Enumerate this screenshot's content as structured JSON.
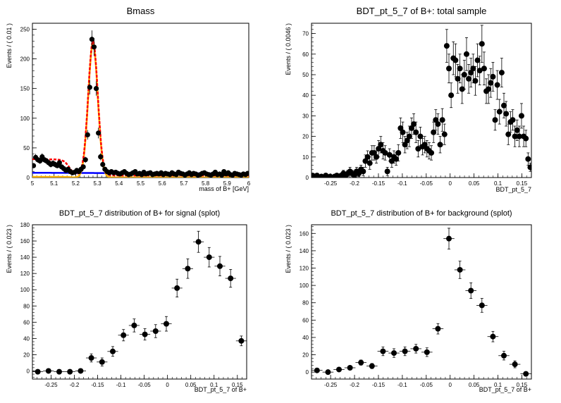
{
  "chart_data": [
    {
      "type": "scatter",
      "title": "Bmass",
      "xlabel": "mass of B+ [GeV]",
      "ylabel": "Events / ( 0.01 )",
      "xlim": [
        5.0,
        6.0
      ],
      "ylim": [
        0,
        260
      ],
      "xticks": [
        5,
        5.1,
        5.2,
        5.3,
        5.4,
        5.5,
        5.6,
        5.7,
        5.8,
        5.9,
        6
      ],
      "xtick_labels": [
        "5",
        "5.1",
        "5.2",
        "5.3",
        "5.4",
        "5.5",
        "5.6",
        "5.7",
        "5.8",
        "5.9",
        "6"
      ],
      "yticks": [
        0,
        50,
        100,
        150,
        200,
        250
      ],
      "ytick_labels": [
        "0",
        "50",
        "100",
        "150",
        "200",
        "250"
      ],
      "grid": false,
      "points": {
        "x": [
          5.005,
          5.015,
          5.025,
          5.035,
          5.045,
          5.055,
          5.065,
          5.075,
          5.085,
          5.095,
          5.105,
          5.115,
          5.125,
          5.135,
          5.145,
          5.155,
          5.165,
          5.175,
          5.185,
          5.195,
          5.205,
          5.215,
          5.225,
          5.235,
          5.245,
          5.255,
          5.265,
          5.275,
          5.285,
          5.295,
          5.305,
          5.315,
          5.325,
          5.335,
          5.345,
          5.355,
          5.365,
          5.375,
          5.385,
          5.395,
          5.405,
          5.415,
          5.425,
          5.435,
          5.445,
          5.455,
          5.465,
          5.475,
          5.485,
          5.495,
          5.505,
          5.515,
          5.525,
          5.535,
          5.545,
          5.555,
          5.565,
          5.575,
          5.585,
          5.595,
          5.605,
          5.615,
          5.625,
          5.635,
          5.645,
          5.655,
          5.665,
          5.675,
          5.685,
          5.695,
          5.705,
          5.715,
          5.725,
          5.735,
          5.745,
          5.755,
          5.765,
          5.775,
          5.785,
          5.795,
          5.805,
          5.815,
          5.825,
          5.835,
          5.845,
          5.855,
          5.865,
          5.875,
          5.885,
          5.895,
          5.905,
          5.915,
          5.925,
          5.935,
          5.945,
          5.955,
          5.965,
          5.975,
          5.985,
          5.995
        ],
        "y": [
          20,
          34,
          30,
          28,
          35,
          30,
          28,
          25,
          22,
          24,
          22,
          20,
          25,
          18,
          15,
          12,
          14,
          10,
          8,
          9,
          12,
          10,
          14,
          18,
          30,
          72,
          152,
          233,
          220,
          150,
          75,
          35,
          22,
          14,
          10,
          8,
          10,
          8,
          9,
          7,
          6,
          8,
          10,
          7,
          5,
          6,
          8,
          10,
          6,
          7,
          5,
          9,
          6,
          7,
          8,
          5,
          6,
          7,
          6,
          8,
          5,
          7,
          6,
          5,
          8,
          6,
          5,
          9,
          7,
          6,
          4,
          6,
          8,
          5,
          7,
          6,
          4,
          5,
          7,
          8,
          6,
          5,
          4,
          6,
          9,
          5,
          6,
          4,
          10,
          6,
          8,
          5,
          4,
          7,
          6,
          5,
          4,
          6,
          5,
          7
        ],
        "yerr": [
          4,
          6,
          5,
          5,
          6,
          5,
          5,
          5,
          5,
          5,
          5,
          4,
          5,
          4,
          4,
          3,
          4,
          3,
          3,
          3,
          3,
          3,
          4,
          4,
          5,
          8,
          12,
          15,
          15,
          12,
          9,
          6,
          5,
          4,
          3,
          3,
          3,
          3,
          3,
          3,
          2,
          3,
          3,
          3,
          2,
          2,
          3,
          3,
          2,
          3,
          2,
          3,
          2,
          3,
          3,
          2,
          2,
          3,
          2,
          3,
          2,
          3,
          2,
          2,
          3,
          2,
          2,
          3,
          3,
          2,
          2,
          2,
          3,
          2,
          3,
          2,
          2,
          2,
          3,
          3,
          2,
          2,
          2,
          2,
          3,
          2,
          2,
          2,
          3,
          2,
          3,
          2,
          2,
          3,
          2,
          2,
          2,
          2,
          2,
          3
        ]
      },
      "fit_curves": [
        {
          "role": "total-fit",
          "color": "#ff0000"
        },
        {
          "role": "signal-fit",
          "color": "#ffb000"
        },
        {
          "role": "background-fit",
          "color": "#0000ff"
        }
      ]
    },
    {
      "type": "scatter",
      "title": "BDT_pt_5_7 of B+: total sample",
      "xlabel": "BDT_pt_5_7",
      "ylabel": "Events / ( 0.0046 )",
      "xlim": [
        -0.29,
        0.17
      ],
      "ylim": [
        0,
        75
      ],
      "xticks": [
        -0.25,
        -0.2,
        -0.15,
        -0.1,
        -0.05,
        0,
        0.05,
        0.1,
        0.15
      ],
      "xtick_labels": [
        "-0.25",
        "-0.2",
        "-0.15",
        "-0.1",
        "-0.05",
        "0",
        "0.05",
        "0.1",
        "0.15"
      ],
      "yticks": [
        0,
        10,
        20,
        30,
        40,
        50,
        60,
        70
      ],
      "ytick_labels": [
        "0",
        "10",
        "20",
        "30",
        "40",
        "50",
        "60",
        "70"
      ],
      "grid": false,
      "points": {
        "x": [
          -0.2877,
          -0.2831,
          -0.2785,
          -0.2739,
          -0.2693,
          -0.2647,
          -0.2601,
          -0.2555,
          -0.2509,
          -0.2463,
          -0.2417,
          -0.2371,
          -0.2325,
          -0.2279,
          -0.2233,
          -0.2187,
          -0.2141,
          -0.2095,
          -0.2049,
          -0.2003,
          -0.1957,
          -0.1911,
          -0.1865,
          -0.1819,
          -0.1773,
          -0.1727,
          -0.1681,
          -0.1635,
          -0.1589,
          -0.1543,
          -0.1497,
          -0.1451,
          -0.1405,
          -0.1359,
          -0.1313,
          -0.1267,
          -0.1221,
          -0.1175,
          -0.1129,
          -0.1083,
          -0.1037,
          -0.0991,
          -0.0945,
          -0.0899,
          -0.0853,
          -0.0807,
          -0.0761,
          -0.0715,
          -0.0669,
          -0.0623,
          -0.0577,
          -0.0531,
          -0.0485,
          -0.0439,
          -0.0393,
          -0.0347,
          -0.0301,
          -0.0255,
          -0.0209,
          -0.0163,
          -0.0117,
          -0.0071,
          -0.0025,
          0.0021,
          0.0067,
          0.0113,
          0.0159,
          0.0205,
          0.0251,
          0.0297,
          0.0343,
          0.0389,
          0.0435,
          0.0481,
          0.0527,
          0.0573,
          0.0619,
          0.0665,
          0.0711,
          0.0757,
          0.0803,
          0.0849,
          0.0895,
          0.0941,
          0.0987,
          0.1033,
          0.1079,
          0.1125,
          0.1171,
          0.1217,
          0.1263,
          0.1309,
          0.1355,
          0.1401,
          0.1447,
          0.1493,
          0.1539,
          0.1585,
          0.1631,
          0.1677
        ],
        "y": [
          1,
          0.5,
          1,
          0,
          0.5,
          0,
          1,
          0,
          0.5,
          0,
          0.5,
          1,
          0,
          1,
          2,
          1,
          2,
          3,
          2,
          1,
          3,
          2,
          4,
          3,
          8,
          10,
          7,
          12,
          12,
          10,
          14,
          16,
          13,
          12,
          3,
          11,
          8,
          10,
          9,
          12,
          24,
          22,
          16,
          18,
          20,
          24,
          26,
          22,
          14,
          20,
          15,
          16,
          14,
          13,
          12,
          22,
          28,
          26,
          16,
          28,
          21,
          64,
          53,
          40,
          58,
          57,
          48,
          53,
          43,
          50,
          60,
          48,
          51,
          53,
          47,
          57,
          52,
          65,
          53,
          42,
          43,
          46,
          49,
          28,
          45,
          32,
          51,
          35,
          31,
          21,
          27,
          28,
          20,
          23,
          20,
          30,
          20,
          19,
          9,
          5
        ],
        "yerr": [
          1,
          1,
          1,
          1,
          1,
          1,
          1,
          1,
          1,
          1,
          1,
          1,
          1,
          1,
          1.5,
          1,
          1.5,
          2,
          1.5,
          1,
          2,
          1.5,
          2,
          2,
          3,
          3,
          3,
          3.5,
          3.5,
          3,
          4,
          4,
          4,
          3.5,
          2,
          3,
          3,
          3,
          3,
          4,
          5,
          5,
          4,
          4,
          5,
          5,
          5,
          5,
          4,
          4.5,
          4,
          4,
          4,
          4,
          3.5,
          5,
          5,
          5,
          4,
          5.5,
          5,
          8,
          7,
          6,
          8,
          8,
          7,
          7,
          7,
          7,
          8,
          7,
          7,
          7,
          7,
          8,
          7,
          9,
          8,
          6,
          7,
          7,
          7,
          5,
          7,
          6,
          7,
          6,
          6,
          5,
          5,
          5,
          5,
          5,
          5,
          6,
          5,
          4,
          3,
          2
        ]
      }
    },
    {
      "type": "scatter",
      "title": "BDT_pt_5_7 distribution of B+ for signal (splot)",
      "xlabel": "BDT_pt_5_7 of B+",
      "ylabel": "Events / ( 0.023 )",
      "xlim": [
        -0.29,
        0.17
      ],
      "ylim": [
        -10,
        180
      ],
      "xticks": [
        -0.25,
        -0.2,
        -0.15,
        -0.1,
        -0.05,
        0,
        0.05,
        0.1,
        0.15
      ],
      "xtick_labels": [
        "-0.25",
        "-0.2",
        "-0.15",
        "-0.1",
        "-0.05",
        "0",
        "0.05",
        "0.1",
        "0.15"
      ],
      "yticks": [
        0,
        20,
        40,
        60,
        80,
        100,
        120,
        140,
        160,
        180
      ],
      "ytick_labels": [
        "0",
        "20",
        "40",
        "60",
        "80",
        "100",
        "120",
        "140",
        "160",
        "180"
      ],
      "grid": false,
      "points": {
        "x": [
          -0.2785,
          -0.2555,
          -0.2325,
          -0.2095,
          -0.1865,
          -0.1635,
          -0.1405,
          -0.1175,
          -0.0945,
          -0.0715,
          -0.0485,
          -0.0255,
          -0.0025,
          0.0205,
          0.0435,
          0.0665,
          0.0895,
          0.1125,
          0.1355,
          0.1585
        ],
        "y": [
          -1,
          0,
          -1,
          -1,
          0,
          16,
          11,
          24,
          44,
          56,
          45,
          49,
          58,
          102,
          126,
          159,
          140,
          129,
          114,
          37
        ],
        "yerr": [
          2,
          2,
          2,
          2,
          2,
          5,
          5,
          6,
          7,
          8,
          7,
          8,
          9,
          11,
          12,
          13,
          12,
          12,
          11,
          6
        ]
      }
    },
    {
      "type": "scatter",
      "title": "BDT_pt_5_7 distribution of B+ for background (splot)",
      "xlabel": "BDT_pt_5_7 of B+",
      "ylabel": "Events / ( 0.023 )",
      "xlim": [
        -0.29,
        0.17
      ],
      "ylim": [
        -8,
        170
      ],
      "xticks": [
        -0.25,
        -0.2,
        -0.15,
        -0.1,
        -0.05,
        0,
        0.05,
        0.1,
        0.15
      ],
      "xtick_labels": [
        "-0.25",
        "-0.2",
        "-0.15",
        "-0.1",
        "-0.05",
        "0",
        "0.05",
        "0.1",
        "0.15"
      ],
      "yticks": [
        0,
        20,
        40,
        60,
        80,
        100,
        120,
        140,
        160
      ],
      "ytick_labels": [
        "0",
        "20",
        "40",
        "60",
        "80",
        "100",
        "120",
        "140",
        "160"
      ],
      "grid": false,
      "points": {
        "x": [
          -0.2785,
          -0.2555,
          -0.2325,
          -0.2095,
          -0.1865,
          -0.1635,
          -0.1405,
          -0.1175,
          -0.0945,
          -0.0715,
          -0.0485,
          -0.0255,
          -0.0025,
          0.0205,
          0.0435,
          0.0665,
          0.0895,
          0.1125,
          0.1355,
          0.1585
        ],
        "y": [
          2,
          0,
          3,
          5,
          11,
          7,
          24,
          22,
          24,
          27,
          23,
          50,
          154,
          118,
          94,
          77,
          41,
          19,
          9,
          -2
        ],
        "yerr": [
          2,
          2,
          2,
          2,
          3,
          3,
          5,
          5,
          5,
          5,
          5,
          6,
          12,
          10,
          9,
          8,
          6,
          5,
          4,
          2
        ]
      }
    }
  ]
}
